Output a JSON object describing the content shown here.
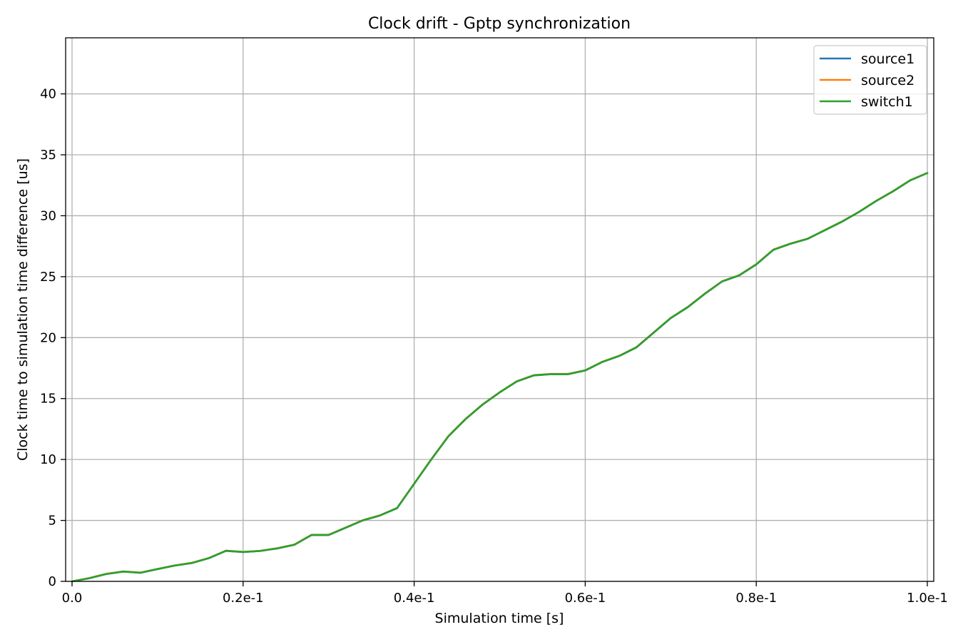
{
  "chart_data": {
    "type": "line",
    "title": "Clock drift - Gptp synchronization",
    "xlabel": "Simulation time [s]",
    "ylabel": "Clock time to simulation time difference [us]",
    "xlim": [
      0,
      0.1
    ],
    "ylim": [
      0,
      44.6
    ],
    "x_ticks": [
      {
        "value": 0.0,
        "label": "0.0"
      },
      {
        "value": 0.02,
        "label": "0.2e-1"
      },
      {
        "value": 0.04,
        "label": "0.4e-1"
      },
      {
        "value": 0.06,
        "label": "0.6e-1"
      },
      {
        "value": 0.08,
        "label": "0.8e-1"
      },
      {
        "value": 0.1,
        "label": "1.0e-1"
      }
    ],
    "y_ticks": [
      {
        "value": 0,
        "label": "0"
      },
      {
        "value": 5,
        "label": "5"
      },
      {
        "value": 10,
        "label": "10"
      },
      {
        "value": 15,
        "label": "15"
      },
      {
        "value": 20,
        "label": "20"
      },
      {
        "value": 25,
        "label": "25"
      },
      {
        "value": 30,
        "label": "30"
      },
      {
        "value": 35,
        "label": "35"
      },
      {
        "value": 40,
        "label": "40"
      }
    ],
    "grid": true,
    "legend_position": "top-right",
    "x": [
      0,
      0.002,
      0.004,
      0.006,
      0.008,
      0.01,
      0.012,
      0.014,
      0.016,
      0.018,
      0.02,
      0.022,
      0.024,
      0.026,
      0.028,
      0.03,
      0.032,
      0.034,
      0.036,
      0.038,
      0.04,
      0.042,
      0.044,
      0.046,
      0.048,
      0.05,
      0.052,
      0.054,
      0.056,
      0.058,
      0.06,
      0.062,
      0.064,
      0.066,
      0.068,
      0.07,
      0.072,
      0.074,
      0.076,
      0.078,
      0.08,
      0.082,
      0.084,
      0.086,
      0.088,
      0.09,
      0.092,
      0.094,
      0.096,
      0.098,
      0.1
    ],
    "series": [
      {
        "name": "source1",
        "color": "#1f77b4",
        "values": [
          0.0,
          0.25,
          0.6,
          0.8,
          0.7,
          1.0,
          1.3,
          1.5,
          1.9,
          2.5,
          2.4,
          2.5,
          2.7,
          3.0,
          3.8,
          3.8,
          4.4,
          5.0,
          5.4,
          6.0,
          8.0,
          10.0,
          11.9,
          13.3,
          14.5,
          15.5,
          16.4,
          16.9,
          17.0,
          17.0,
          17.3,
          18.0,
          18.5,
          19.2,
          20.4,
          21.6,
          22.5,
          23.6,
          24.6,
          25.1,
          26.0,
          27.2,
          27.7,
          28.1,
          28.8,
          29.5,
          30.3,
          31.2,
          32.0,
          32.9,
          33.5
        ]
      },
      {
        "name": "source2",
        "color": "#ff7f0e",
        "values": [
          0.0,
          0.27,
          0.62,
          0.82,
          0.72,
          1.02,
          1.3,
          1.52,
          1.92,
          2.52,
          2.42,
          2.5,
          2.72,
          3.02,
          3.82,
          3.82,
          4.42,
          5.02,
          5.42,
          6.02,
          8.02,
          10.02,
          11.92,
          13.32,
          14.52,
          15.52,
          16.42,
          16.92,
          17.02,
          17.02,
          17.32,
          18.02,
          18.52,
          19.22,
          20.42,
          21.62,
          22.52,
          23.62,
          24.62,
          25.12,
          26.02,
          27.22,
          27.72,
          28.12,
          28.82,
          29.52,
          30.32,
          31.22,
          32.02,
          32.92,
          33.5
        ]
      },
      {
        "name": "switch1",
        "color": "#2ca02c",
        "values": [
          0.0,
          0.26,
          0.61,
          0.81,
          0.71,
          1.01,
          1.3,
          1.51,
          1.91,
          2.51,
          2.41,
          2.5,
          2.71,
          3.01,
          3.81,
          3.81,
          4.41,
          5.01,
          5.41,
          6.01,
          8.01,
          10.01,
          11.91,
          13.31,
          14.51,
          15.51,
          16.41,
          16.91,
          17.01,
          17.01,
          17.31,
          18.01,
          18.51,
          19.21,
          20.41,
          21.61,
          22.51,
          23.61,
          24.61,
          25.11,
          26.01,
          27.21,
          27.71,
          28.11,
          28.81,
          29.51,
          30.31,
          31.21,
          32.01,
          32.91,
          33.5
        ]
      }
    ]
  }
}
